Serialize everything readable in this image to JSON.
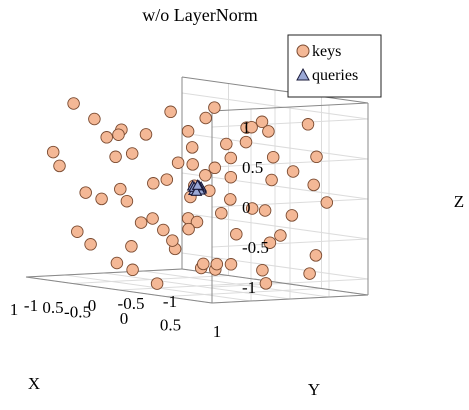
{
  "chart_data": {
    "type": "scatter",
    "title": "w/o LayerNorm",
    "xlabel": "X",
    "ylabel": "Y",
    "zlabel": "Z",
    "xlim": [
      -1,
      1
    ],
    "ylim": [
      -1,
      1
    ],
    "zlim": [
      -1.2,
      1.2
    ],
    "x_ticks": [
      "-1",
      "-0.5",
      "0",
      "0.5",
      "1"
    ],
    "y_ticks": [
      "-1",
      "-0.5",
      "0",
      "0.5",
      "1"
    ],
    "z_ticks": [
      "1",
      "0.5",
      "0",
      "-0.5",
      "-1"
    ],
    "grid": true,
    "legend_position": "top-right",
    "colors": {
      "keys_fill": "#f4b896",
      "keys_edge": "#7a4a30",
      "queries_fill": "#9aa8d6",
      "queries_edge": "#1a1a3a"
    },
    "series": [
      {
        "name": "keys",
        "marker": "circle",
        "points": [
          [
            0.18,
            0.85,
            1.0
          ],
          [
            0.02,
            0.55,
            0.87
          ],
          [
            -0.2,
            0.6,
            0.82
          ],
          [
            -0.35,
            0.9,
            0.95
          ],
          [
            -0.7,
            -0.4,
            0.93
          ],
          [
            0.45,
            -0.95,
            0.95
          ],
          [
            0.6,
            -0.6,
            0.82
          ],
          [
            0.85,
            -0.1,
            0.78
          ],
          [
            0.3,
            0.2,
            0.58
          ],
          [
            -0.45,
            0.15,
            0.6
          ],
          [
            0.6,
            0.3,
            0.42
          ],
          [
            0.95,
            0.1,
            0.52
          ],
          [
            -0.1,
            0.95,
            0.38
          ],
          [
            -0.85,
            -0.35,
            0.3
          ],
          [
            0.2,
            0.9,
            -0.1
          ],
          [
            0.1,
            -0.2,
            0.95
          ],
          [
            0.55,
            0.55,
            0.3
          ],
          [
            -0.3,
            -0.8,
            0.55
          ],
          [
            0.75,
            -0.85,
            0.2
          ],
          [
            -0.9,
            0.5,
            0.1
          ],
          [
            0.35,
            -0.55,
            0.62
          ],
          [
            -0.65,
            0.85,
            -0.05
          ],
          [
            0.8,
            0.6,
            0.05
          ],
          [
            -0.15,
            -0.45,
            0.05
          ],
          [
            0.05,
            0.4,
            -0.05
          ],
          [
            0.95,
            -0.4,
            -0.05
          ],
          [
            -0.8,
            -0.7,
            -0.1
          ],
          [
            0.45,
            0.8,
            -0.4
          ],
          [
            -0.35,
            0.3,
            -0.2
          ],
          [
            0.6,
            -0.25,
            -0.15
          ],
          [
            -0.55,
            -0.2,
            -0.35
          ],
          [
            0.15,
            -0.9,
            -0.25
          ],
          [
            0.85,
            0.35,
            -0.4
          ],
          [
            -0.1,
            0.7,
            -0.55
          ],
          [
            -0.95,
            0.1,
            -0.6
          ],
          [
            0.4,
            0.1,
            -0.7
          ],
          [
            0.7,
            -0.7,
            -0.6
          ],
          [
            -0.4,
            -0.6,
            -0.75
          ],
          [
            0.1,
            0.45,
            -0.85
          ],
          [
            -0.75,
            0.65,
            -0.75
          ],
          [
            0.9,
            0.8,
            -0.8
          ],
          [
            -0.2,
            -0.1,
            -0.95
          ],
          [
            0.55,
            -0.4,
            -0.95
          ],
          [
            -0.6,
            0.2,
            -1.0
          ],
          [
            0.25,
            0.95,
            -1.0
          ],
          [
            0.75,
            0.2,
            -1.1
          ],
          [
            -0.85,
            -0.5,
            -1.05
          ],
          [
            0.05,
            -0.65,
            -1.1
          ],
          [
            -0.3,
            0.55,
            0.2
          ],
          [
            0.5,
            -0.05,
            0.1
          ],
          [
            -0.05,
            0.15,
            0.3
          ],
          [
            0.3,
            -0.35,
            -0.45
          ],
          [
            -0.5,
            0.4,
            0.45
          ],
          [
            0.65,
            0.45,
            -0.25
          ],
          [
            -0.25,
            -0.3,
            -0.55
          ],
          [
            0.95,
            -0.75,
            0.4
          ],
          [
            -0.7,
            0.0,
            0.75
          ],
          [
            0.4,
            0.65,
            0.7
          ],
          [
            0.15,
            -0.75,
            0.3
          ],
          [
            -0.9,
            -0.85,
            0.55
          ],
          [
            0.8,
            -0.3,
            0.65
          ],
          [
            -0.4,
            0.95,
            0.55
          ],
          [
            0.2,
            0.3,
            0.05
          ],
          [
            -0.6,
            -0.55,
            0.2
          ],
          [
            0.7,
            0.95,
            0.35
          ],
          [
            -0.15,
            -0.95,
            -0.15
          ],
          [
            0.45,
            -0.1,
            -0.35
          ],
          [
            -0.8,
            0.35,
            -0.3
          ],
          [
            0.9,
            0.05,
            -0.65
          ],
          [
            -0.35,
            -0.2,
            0.85
          ],
          [
            0.6,
            0.7,
            -0.85
          ],
          [
            0.0,
            0.0,
            -0.4
          ],
          [
            -0.55,
            0.75,
            -0.95
          ],
          [
            0.35,
            -0.85,
            -0.8
          ]
        ]
      },
      {
        "name": "queries",
        "marker": "triangle",
        "points": [
          [
            0.0,
            0.0,
            0.02
          ],
          [
            0.03,
            0.02,
            0.03
          ],
          [
            -0.03,
            -0.02,
            0.0
          ],
          [
            0.02,
            -0.03,
            0.04
          ],
          [
            -0.02,
            0.03,
            0.01
          ],
          [
            0.04,
            0.0,
            -0.01
          ],
          [
            -0.04,
            0.01,
            0.03
          ],
          [
            0.01,
            0.04,
            0.0
          ],
          [
            -0.01,
            -0.04,
            0.02
          ],
          [
            0.0,
            0.02,
            0.05
          ],
          [
            0.02,
            0.01,
            -0.02
          ],
          [
            -0.02,
            -0.01,
            0.05
          ]
        ]
      }
    ]
  }
}
